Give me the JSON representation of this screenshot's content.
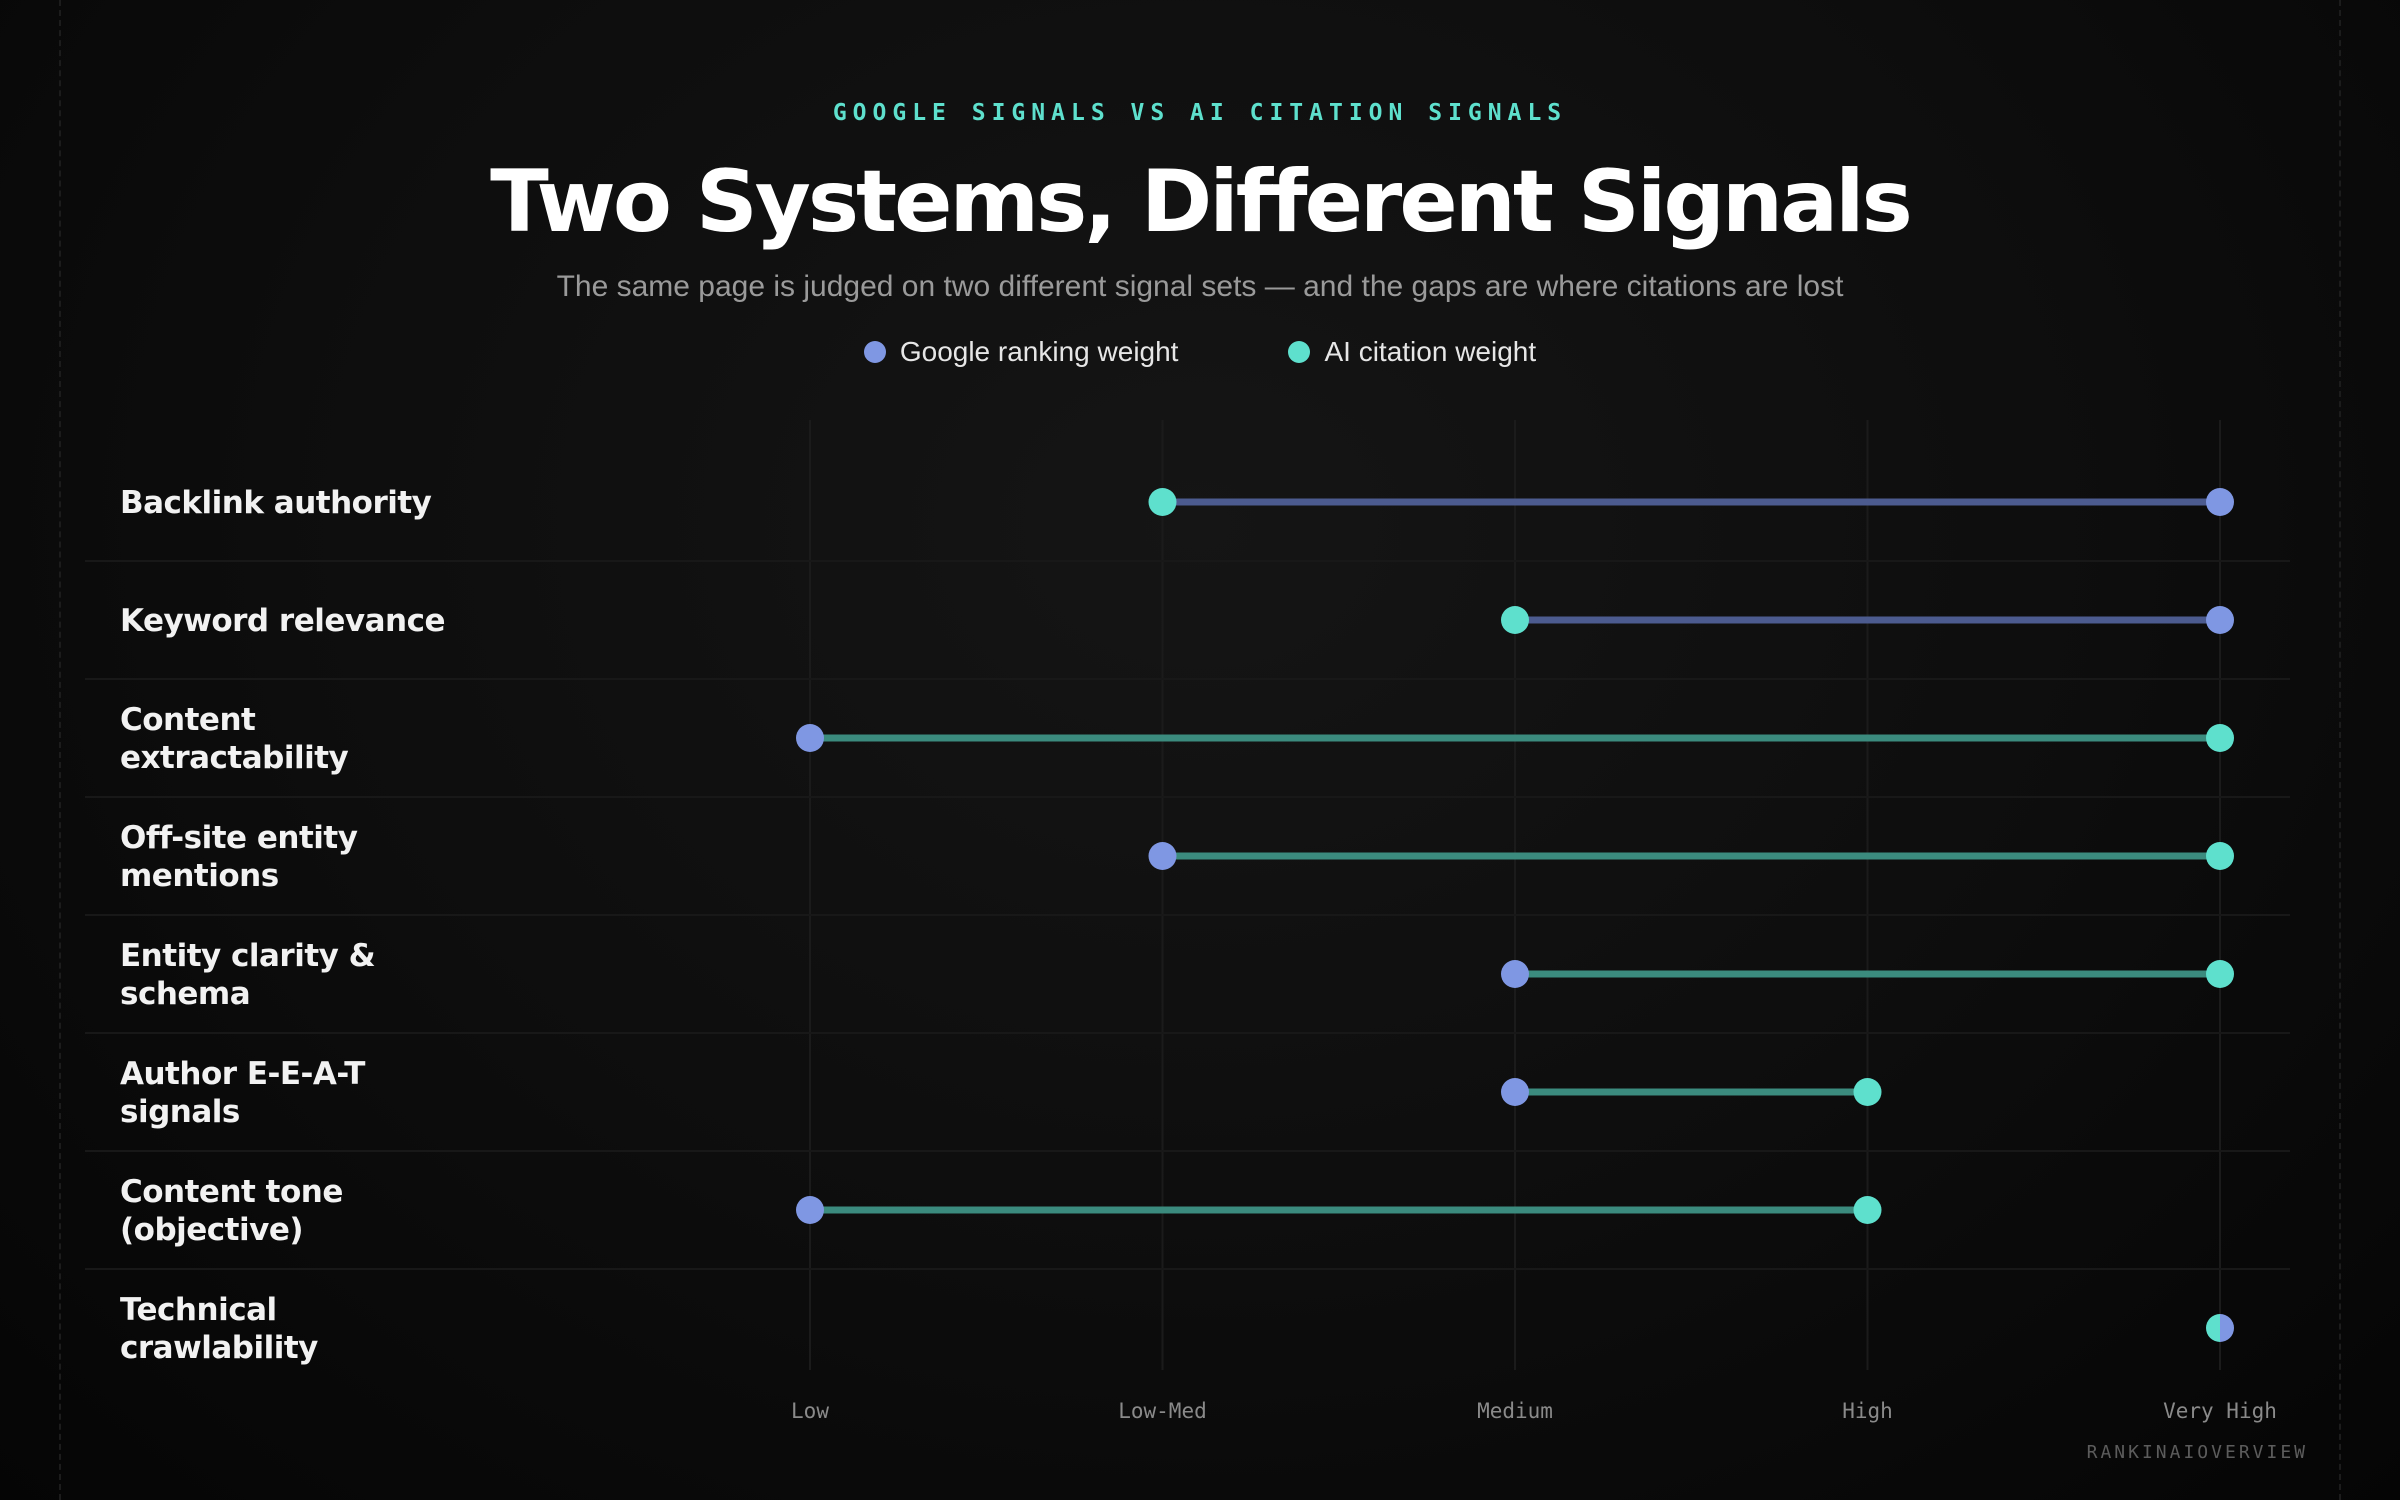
{
  "header": {
    "eyebrow": "GOOGLE SIGNALS VS AI CITATION SIGNALS",
    "title": "Two Systems, Different Signals",
    "subtitle": "The same page is judged on two different signal sets — and the gaps are where citations are lost"
  },
  "footer": {
    "brand": "RANKINAIOVERVIEW"
  },
  "colors": {
    "google": "#7f97e3",
    "ai": "#5ee0cd",
    "google_line": "#4c5b8f",
    "ai_line": "#3b8b7e"
  },
  "chart_data": {
    "type": "dumbbell",
    "categories": [
      "Backlink authority",
      "Keyword relevance",
      "Content extractability",
      "Off-site entity mentions",
      "Entity clarity & schema",
      "Author E-E-A-T signals",
      "Content tone (objective)",
      "Technical crawlability"
    ],
    "x_tick_labels": [
      "Low",
      "Low-Med",
      "Medium",
      "High",
      "Very High"
    ],
    "xlim": [
      1,
      5
    ],
    "grid": true,
    "legend_position": "top-center",
    "series": [
      {
        "name": "Google ranking weight",
        "values": [
          5,
          5,
          1,
          2,
          3,
          3,
          1,
          5
        ]
      },
      {
        "name": "AI citation weight",
        "values": [
          2,
          3,
          5,
          5,
          5,
          4,
          4,
          5
        ]
      }
    ]
  }
}
